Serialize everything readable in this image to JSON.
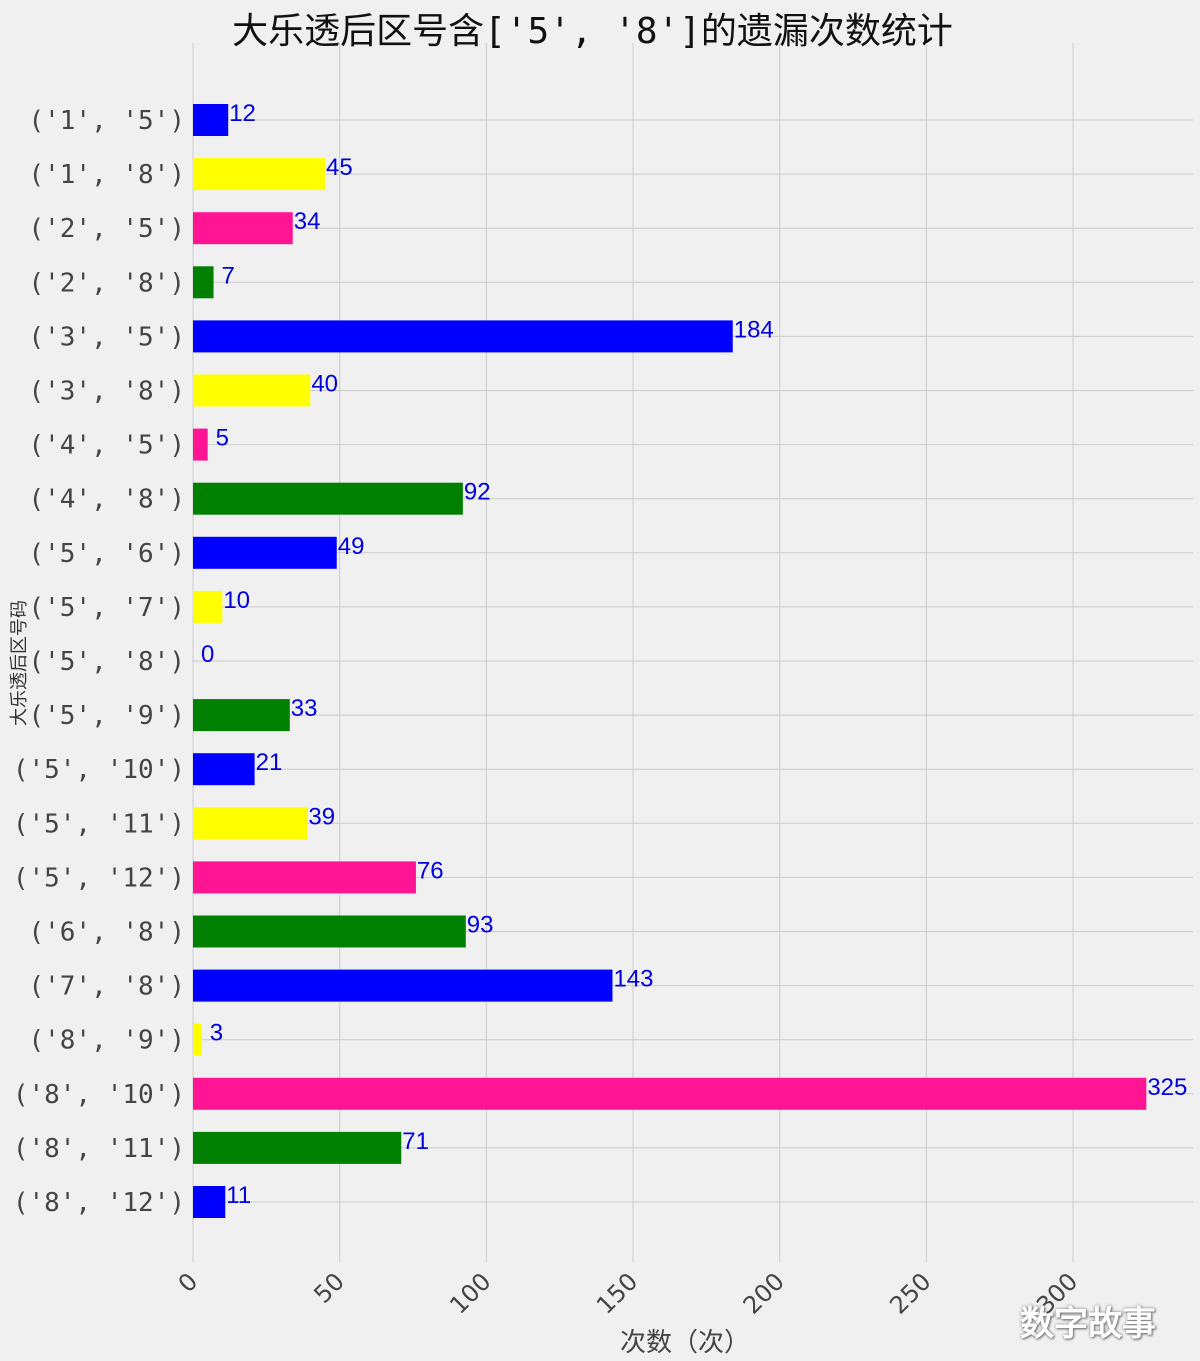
{
  "chart_data": {
    "type": "bar",
    "orientation": "horizontal",
    "title": "大乐透后区号含['5', '8']的遗漏次数统计",
    "xlabel": "次数（次）",
    "ylabel": "大乐透后区号码",
    "categories": [
      "('1', '5')",
      "('1', '8')",
      "('2', '5')",
      "('2', '8')",
      "('3', '5')",
      "('3', '8')",
      "('4', '5')",
      "('4', '8')",
      "('5', '6')",
      "('5', '7')",
      "('5', '8')",
      "('5', '9')",
      "('5', '10')",
      "('5', '11')",
      "('5', '12')",
      "('6', '8')",
      "('7', '8')",
      "('8', '9')",
      "('8', '10')",
      "('8', '11')",
      "('8', '12')"
    ],
    "values": [
      12,
      45,
      34,
      7,
      184,
      40,
      5,
      92,
      49,
      10,
      0,
      33,
      21,
      39,
      76,
      93,
      143,
      3,
      325,
      71,
      11
    ],
    "colors": [
      "#0000ff",
      "#ffff00",
      "#ff1493",
      "#008000"
    ],
    "label_color": "#0000dd",
    "xticks": [
      0,
      50,
      100,
      150,
      200,
      250,
      300
    ],
    "xtick_labels": [
      "0",
      "50",
      "100",
      "150",
      "200",
      "250",
      "300"
    ],
    "xlim": [
      0,
      340
    ],
    "grid": true
  },
  "watermark": "数字故事"
}
